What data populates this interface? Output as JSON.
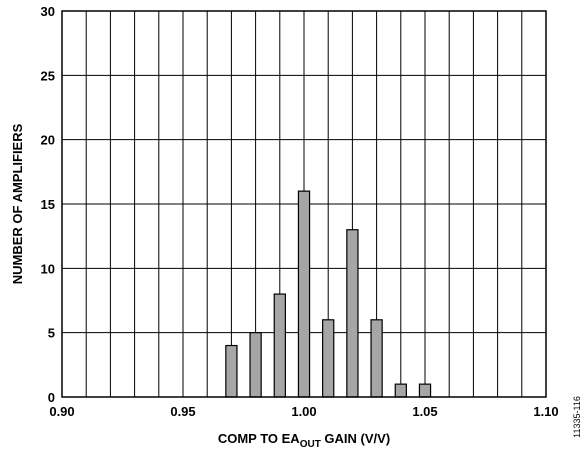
{
  "chart_data": {
    "type": "bar",
    "xlabel_parts": [
      "COMP TO EA",
      "OUT",
      " GAIN (V/V)"
    ],
    "ylabel": "NUMBER OF AMPLIFIERS",
    "x_ticks": [
      "0.90",
      "0.95",
      "1.00",
      "1.05",
      "1.10"
    ],
    "y_ticks": [
      "0",
      "5",
      "10",
      "15",
      "20",
      "25",
      "30"
    ],
    "xlim": [
      0.9,
      1.1
    ],
    "ylim": [
      0,
      30
    ],
    "grid": true,
    "bar_color": "#a6a6a6",
    "categories": [
      0.97,
      0.98,
      0.99,
      1.0,
      1.01,
      1.02,
      1.03,
      1.04,
      1.05
    ],
    "values": [
      4,
      5,
      8,
      16,
      6,
      13,
      6,
      1,
      1
    ]
  },
  "figure_id": "11335-116"
}
